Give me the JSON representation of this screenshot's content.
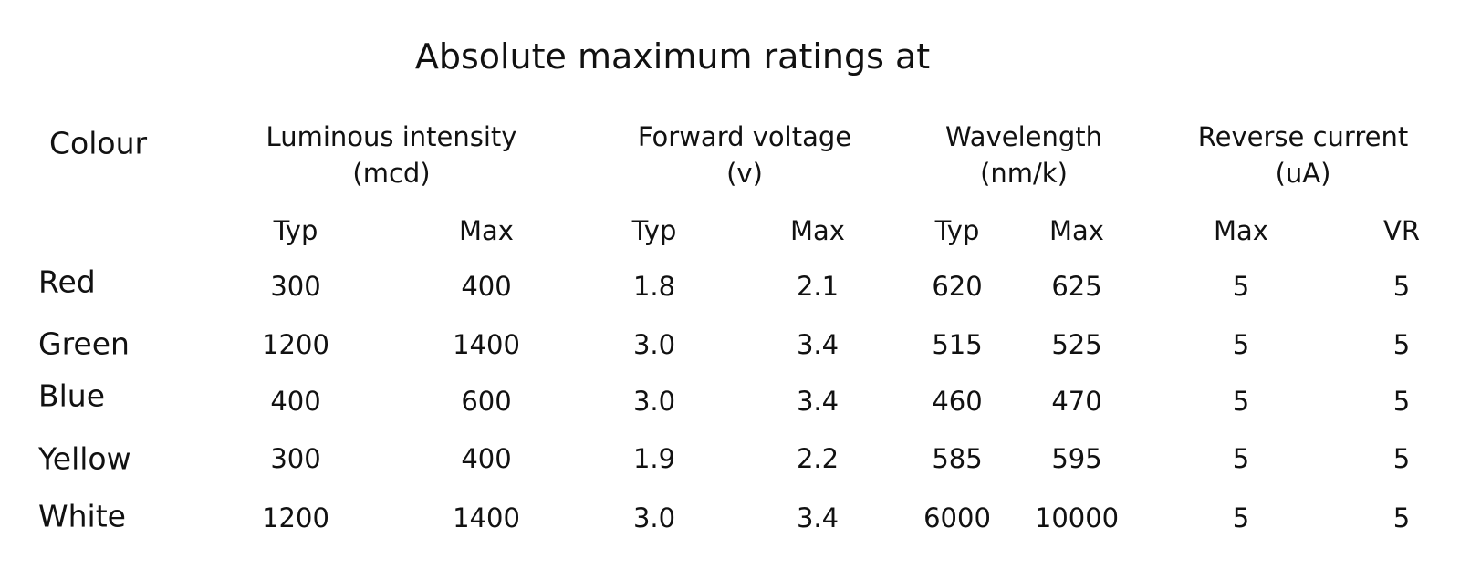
{
  "title": "Absolute maximum ratings at",
  "table": {
    "corner": "Colour",
    "groups": [
      {
        "label": "Luminous intensity",
        "unit": "(mcd)"
      },
      {
        "label": "Forward voltage",
        "unit": "(v)"
      },
      {
        "label": "Wavelength",
        "unit": "(nm/k)"
      },
      {
        "label": "Reverse current",
        "unit": "(uA)"
      }
    ],
    "subheaders": [
      "Typ",
      "Max",
      "Typ",
      "Max",
      "Typ",
      "Max",
      "Max",
      "VR"
    ],
    "rows": [
      {
        "colour": "Red",
        "values": [
          "300",
          "400",
          "1.8",
          "2.1",
          "620",
          "625",
          "5",
          "5"
        ]
      },
      {
        "colour": "Green",
        "values": [
          "1200",
          "1400",
          "3.0",
          "3.4",
          "515",
          "525",
          "5",
          "5"
        ]
      },
      {
        "colour": "Blue",
        "values": [
          "400",
          "600",
          "3.0",
          "3.4",
          "460",
          "470",
          "5",
          "5"
        ]
      },
      {
        "colour": "Yellow",
        "values": [
          "300",
          "400",
          "1.9",
          "2.2",
          "585",
          "595",
          "5",
          "5"
        ]
      },
      {
        "colour": "White",
        "values": [
          "1200",
          "1400",
          "3.0",
          "3.4",
          "6000",
          "10000",
          "5",
          "5"
        ]
      }
    ]
  }
}
